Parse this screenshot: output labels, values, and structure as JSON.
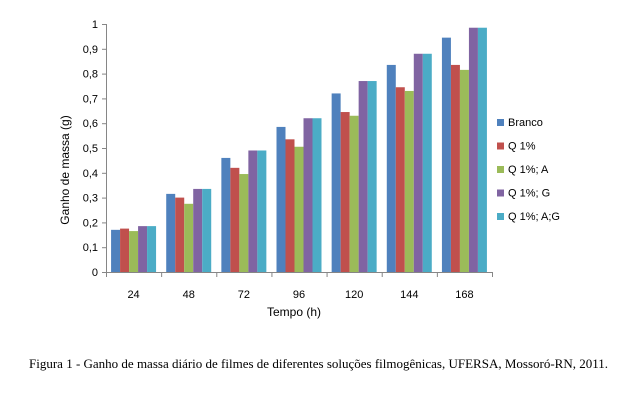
{
  "chart_data": {
    "type": "bar",
    "title": "",
    "xlabel": "Tempo (h)",
    "ylabel": "Ganho de massa (g)",
    "ylim": [
      0,
      1
    ],
    "yticks": [
      "0",
      "0,1",
      "0,2",
      "0,3",
      "0,4",
      "0,5",
      "0,6",
      "0,7",
      "0,8",
      "0,9",
      "1"
    ],
    "categories": [
      "24",
      "48",
      "72",
      "96",
      "120",
      "144",
      "168"
    ],
    "grid": false,
    "legend_position": "right",
    "series": [
      {
        "name": "Branco",
        "color": "#4f81bd",
        "values": [
          0.17,
          0.315,
          0.46,
          0.585,
          0.72,
          0.835,
          0.945
        ]
      },
      {
        "name": "Q 1%",
        "color": "#c0504d",
        "values": [
          0.175,
          0.3,
          0.42,
          0.535,
          0.645,
          0.745,
          0.835
        ]
      },
      {
        "name": "Q 1%; A",
        "color": "#9bbb59",
        "values": [
          0.165,
          0.275,
          0.395,
          0.505,
          0.63,
          0.73,
          0.815
        ]
      },
      {
        "name": "Q 1%; G",
        "color": "#8064a2",
        "values": [
          0.185,
          0.335,
          0.49,
          0.62,
          0.77,
          0.88,
          0.985
        ]
      },
      {
        "name": "Q 1%; A;G",
        "color": "#4bacc6",
        "values": [
          0.185,
          0.335,
          0.49,
          0.62,
          0.77,
          0.88,
          0.985
        ]
      }
    ]
  },
  "caption": {
    "text": "Figura 1 - Ganho de massa diário de filmes de diferentes soluções filmogênicas, UFERSA, Mossoró-RN, 2011."
  }
}
